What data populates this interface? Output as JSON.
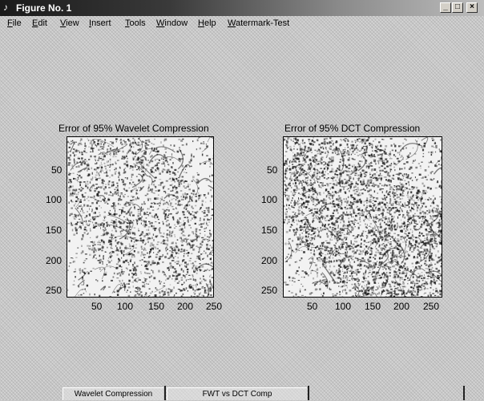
{
  "window": {
    "title": "Figure No. 1",
    "icon": "matlab-figure-icon",
    "controls": {
      "minimize": "_",
      "maximize": "□",
      "close": "×"
    }
  },
  "menu": [
    "File",
    "Edit",
    "View",
    "Insert",
    "Tools",
    "Window",
    "Help",
    "Watermark-Test"
  ],
  "plots": [
    {
      "title": "Error of 95% Wavelet Compression",
      "y_ticks": [
        "50",
        "100",
        "150",
        "200",
        "250"
      ],
      "x_ticks": [
        "50",
        "100",
        "150",
        "200",
        "250"
      ]
    },
    {
      "title": "Error of 95% DCT Compression",
      "y_ticks": [
        "50",
        "100",
        "150",
        "200",
        "250"
      ],
      "x_ticks": [
        "50",
        "100",
        "150",
        "200",
        "250"
      ]
    }
  ],
  "bottom_tabs": [
    "Wavelet Compression",
    "FWT vs DCT Comp"
  ],
  "colors": {
    "image_light": "#f0f0f0",
    "image_dark": "#1a1a1a",
    "titlebar": "#1a1a1a"
  }
}
